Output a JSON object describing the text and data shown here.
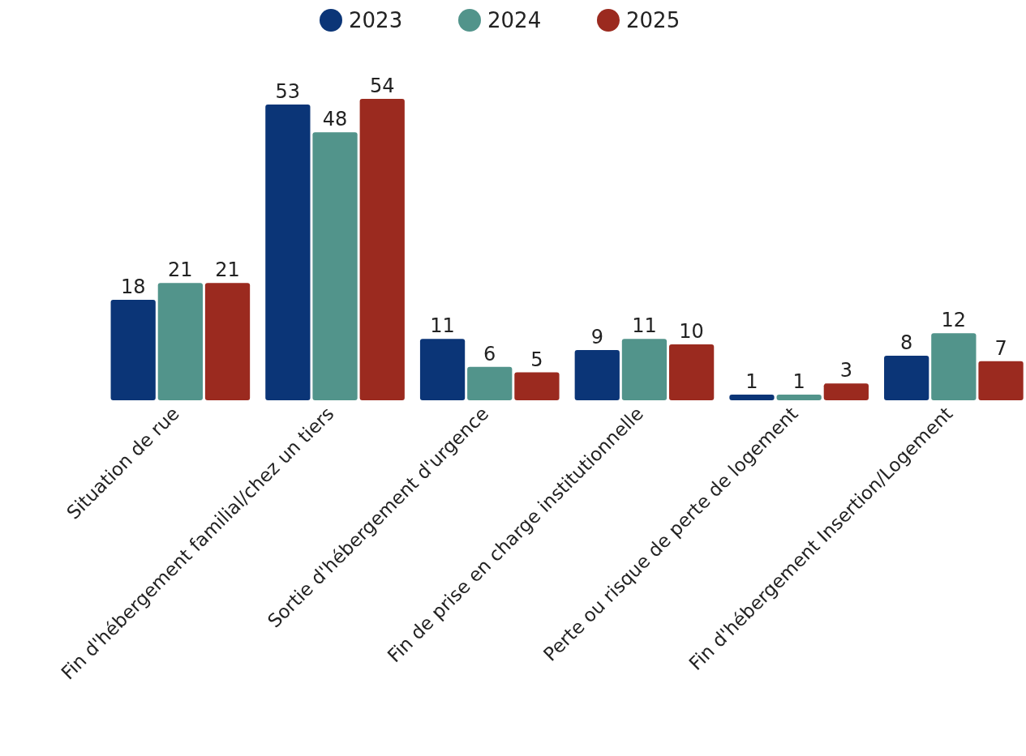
{
  "chart_data": {
    "type": "bar",
    "categories": [
      "Situation de rue",
      "Fin d'hébergement familial/chez un tiers",
      "Sortie d'hébergement d'urgence",
      "Fin de prise en charge institutionnelle",
      "Perte ou risque de perte de logement",
      "Fin d'hébergement Insertion/Logement"
    ],
    "series": [
      {
        "name": "2023",
        "color": "#0b3577",
        "values": [
          18,
          53,
          11,
          9,
          1,
          8
        ]
      },
      {
        "name": "2024",
        "color": "#52948b",
        "values": [
          21,
          48,
          6,
          11,
          1,
          12
        ]
      },
      {
        "name": "2025",
        "color": "#9b2a1f",
        "values": [
          21,
          54,
          5,
          10,
          3,
          7
        ]
      }
    ],
    "data_labels": true,
    "legend": "top",
    "grid": false
  }
}
